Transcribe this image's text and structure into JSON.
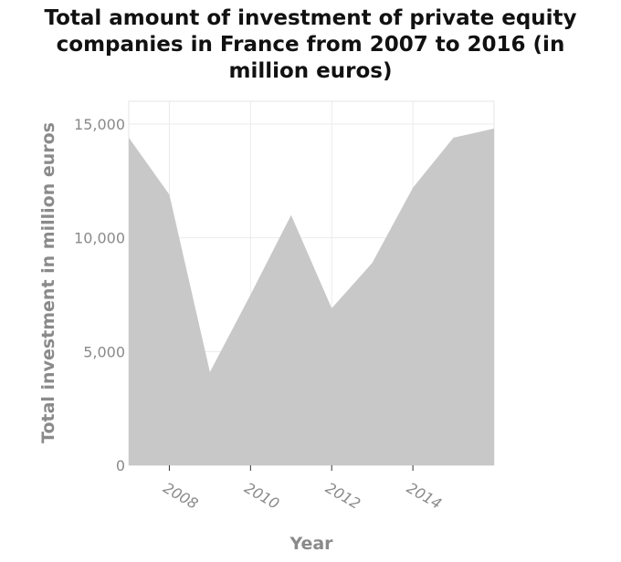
{
  "chart_data": {
    "type": "area",
    "title": "Total amount of investment of private equity\ncompanies in France from 2007 to 2016 (in\nmillion euros)",
    "xlabel": "Year",
    "ylabel": "Total investment in million euros",
    "x": [
      2007,
      2008,
      2009,
      2010,
      2011,
      2012,
      2013,
      2014,
      2015,
      2016
    ],
    "values": [
      14400,
      11900,
      4100,
      7500,
      11000,
      6900,
      8900,
      12200,
      14400,
      14800
    ],
    "xlim": [
      2007,
      2016
    ],
    "ylim": [
      0,
      16000
    ],
    "x_ticks": [
      2008,
      2010,
      2012,
      2014
    ],
    "x_tick_labels": [
      "2008",
      "2010",
      "2012",
      "2014"
    ],
    "y_ticks": [
      0,
      5000,
      10000,
      15000
    ],
    "y_tick_labels": [
      "0",
      "5,000",
      "10,000",
      "15,000"
    ],
    "grid": true,
    "fill_color": "#c8c8c8",
    "grid_color": "#ebebeb"
  }
}
